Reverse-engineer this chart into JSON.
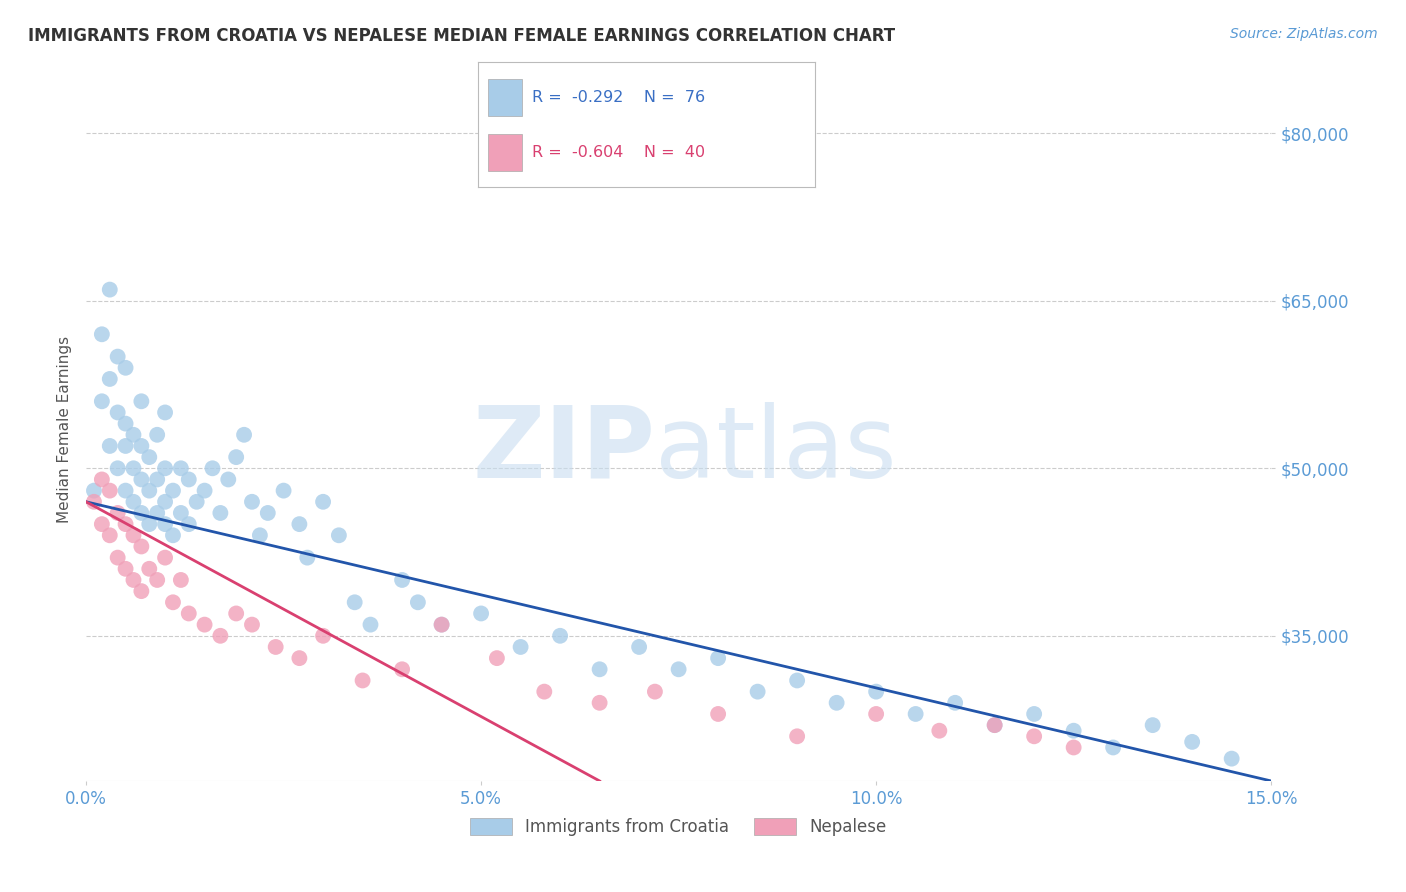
{
  "title": "IMMIGRANTS FROM CROATIA VS NEPALESE MEDIAN FEMALE EARNINGS CORRELATION CHART",
  "source_text": "Source: ZipAtlas.com",
  "ylabel": "Median Female Earnings",
  "xlim": [
    0.0,
    0.15
  ],
  "ylim": [
    22000,
    85000
  ],
  "yticks": [
    35000,
    50000,
    65000,
    80000
  ],
  "ytick_labels": [
    "$35,000",
    "$50,000",
    "$65,000",
    "$80,000"
  ],
  "xticks": [
    0.0,
    0.05,
    0.1,
    0.15
  ],
  "xtick_labels": [
    "0.0%",
    "5.0%",
    "10.0%",
    "15.0%"
  ],
  "watermark_zip": "ZIP",
  "watermark_atlas": "atlas",
  "background_color": "#ffffff",
  "grid_color": "#cccccc",
  "tick_color": "#5b9bd5",
  "ylabel_color": "#555555",
  "title_color": "#333333",
  "series": [
    {
      "name": "Immigrants from Croatia",
      "R": -0.292,
      "N": 76,
      "color": "#a8cce8",
      "line_color": "#2255aa",
      "x": [
        0.001,
        0.002,
        0.002,
        0.003,
        0.003,
        0.003,
        0.004,
        0.004,
        0.004,
        0.005,
        0.005,
        0.005,
        0.005,
        0.006,
        0.006,
        0.006,
        0.007,
        0.007,
        0.007,
        0.007,
        0.008,
        0.008,
        0.008,
        0.009,
        0.009,
        0.009,
        0.01,
        0.01,
        0.01,
        0.01,
        0.011,
        0.011,
        0.012,
        0.012,
        0.013,
        0.013,
        0.014,
        0.015,
        0.016,
        0.017,
        0.018,
        0.019,
        0.02,
        0.021,
        0.022,
        0.023,
        0.025,
        0.027,
        0.028,
        0.03,
        0.032,
        0.034,
        0.036,
        0.04,
        0.042,
        0.045,
        0.05,
        0.055,
        0.06,
        0.065,
        0.07,
        0.075,
        0.08,
        0.085,
        0.09,
        0.095,
        0.1,
        0.105,
        0.11,
        0.115,
        0.12,
        0.125,
        0.13,
        0.135,
        0.14,
        0.145
      ],
      "y": [
        48000,
        56000,
        62000,
        52000,
        58000,
        66000,
        50000,
        55000,
        60000,
        48000,
        52000,
        54000,
        59000,
        47000,
        50000,
        53000,
        46000,
        49000,
        52000,
        56000,
        45000,
        48000,
        51000,
        46000,
        49000,
        53000,
        45000,
        47000,
        50000,
        55000,
        44000,
        48000,
        46000,
        50000,
        45000,
        49000,
        47000,
        48000,
        50000,
        46000,
        49000,
        51000,
        53000,
        47000,
        44000,
        46000,
        48000,
        45000,
        42000,
        47000,
        44000,
        38000,
        36000,
        40000,
        38000,
        36000,
        37000,
        34000,
        35000,
        32000,
        34000,
        32000,
        33000,
        30000,
        31000,
        29000,
        30000,
        28000,
        29000,
        27000,
        28000,
        26500,
        25000,
        27000,
        25500,
        24000
      ],
      "trend_x": [
        0.0,
        0.15
      ],
      "trend_y": [
        47000,
        22000
      ]
    },
    {
      "name": "Nepalese",
      "R": -0.604,
      "N": 40,
      "color": "#f0a0b8",
      "line_color": "#d94070",
      "x": [
        0.001,
        0.002,
        0.002,
        0.003,
        0.003,
        0.004,
        0.004,
        0.005,
        0.005,
        0.006,
        0.006,
        0.007,
        0.007,
        0.008,
        0.009,
        0.01,
        0.011,
        0.012,
        0.013,
        0.015,
        0.017,
        0.019,
        0.021,
        0.024,
        0.027,
        0.03,
        0.035,
        0.04,
        0.045,
        0.052,
        0.058,
        0.065,
        0.072,
        0.08,
        0.09,
        0.1,
        0.108,
        0.115,
        0.12,
        0.125
      ],
      "y": [
        47000,
        49000,
        45000,
        48000,
        44000,
        46000,
        42000,
        45000,
        41000,
        44000,
        40000,
        43000,
        39000,
        41000,
        40000,
        42000,
        38000,
        40000,
        37000,
        36000,
        35000,
        37000,
        36000,
        34000,
        33000,
        35000,
        31000,
        32000,
        36000,
        33000,
        30000,
        29000,
        30000,
        28000,
        26000,
        28000,
        26500,
        27000,
        26000,
        25000
      ],
      "trend_x": [
        0.0,
        0.065
      ],
      "trend_y": [
        47000,
        22000
      ]
    }
  ]
}
